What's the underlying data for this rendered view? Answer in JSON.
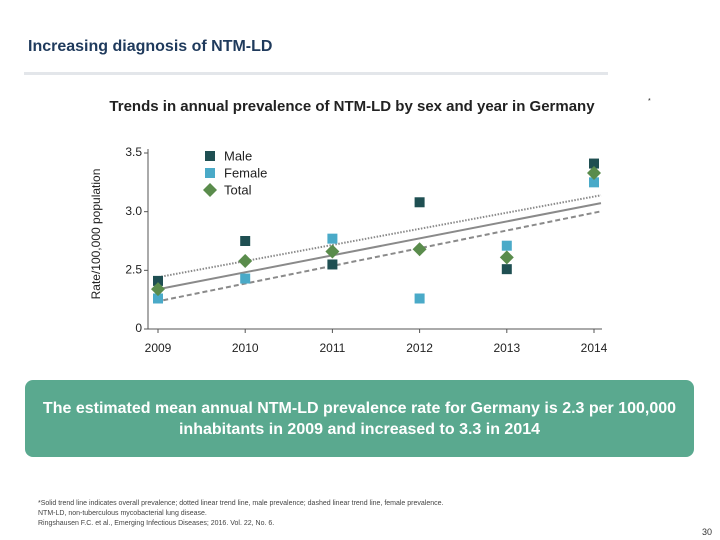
{
  "header": {
    "title": "Increasing diagnosis of NTM-LD"
  },
  "chart_data": {
    "type": "scatter",
    "title": "Trends in annual prevalence of NTM-LD by sex and year in Germany",
    "title_marker": "*",
    "y_label": "Rate/100,000 population",
    "categories": [
      "2009",
      "2010",
      "2011",
      "2012",
      "2013",
      "2014"
    ],
    "series": [
      {
        "name": "Male",
        "color": "#1f4f52",
        "marker": "square",
        "trendline": "dotted",
        "values": [
          2.41,
          2.75,
          2.55,
          3.08,
          2.51,
          3.41
        ]
      },
      {
        "name": "Female",
        "color": "#4aaac8",
        "marker": "square",
        "trendline": "dashed",
        "values": [
          2.26,
          2.43,
          2.77,
          2.26,
          2.71,
          3.25
        ]
      },
      {
        "name": "Total",
        "color": "#5a8c4c",
        "marker": "diamond",
        "trendline": "solid",
        "values": [
          2.34,
          2.58,
          2.66,
          2.68,
          2.61,
          3.33
        ]
      }
    ],
    "ylim": [
      0,
      3.5
    ],
    "axis_break": [
      0,
      2.0
    ],
    "yticks": [
      0,
      2.5,
      {
        "value": 3.0,
        "label": "3.0"
      },
      3.5
    ],
    "legend": "upper-left",
    "grid": false
  },
  "callout": "The estimated mean annual NTM-LD prevalence rate for Germany is 2.3 per 100,000 inhabitants in 2009 and increased to 3.3 in 2014",
  "footnotes": [
    "*Solid trend line indicates overall prevalence; dotted linear trend line, male prevalence; dashed linear trend line, female prevalence.",
    "NTM-LD, non-tuberculous mycobacterial lung disease.",
    "Ringshausen F.C. et al., Emerging Infectious Diseases; 2016. Vol. 22, No. 6."
  ],
  "page_number": "30"
}
